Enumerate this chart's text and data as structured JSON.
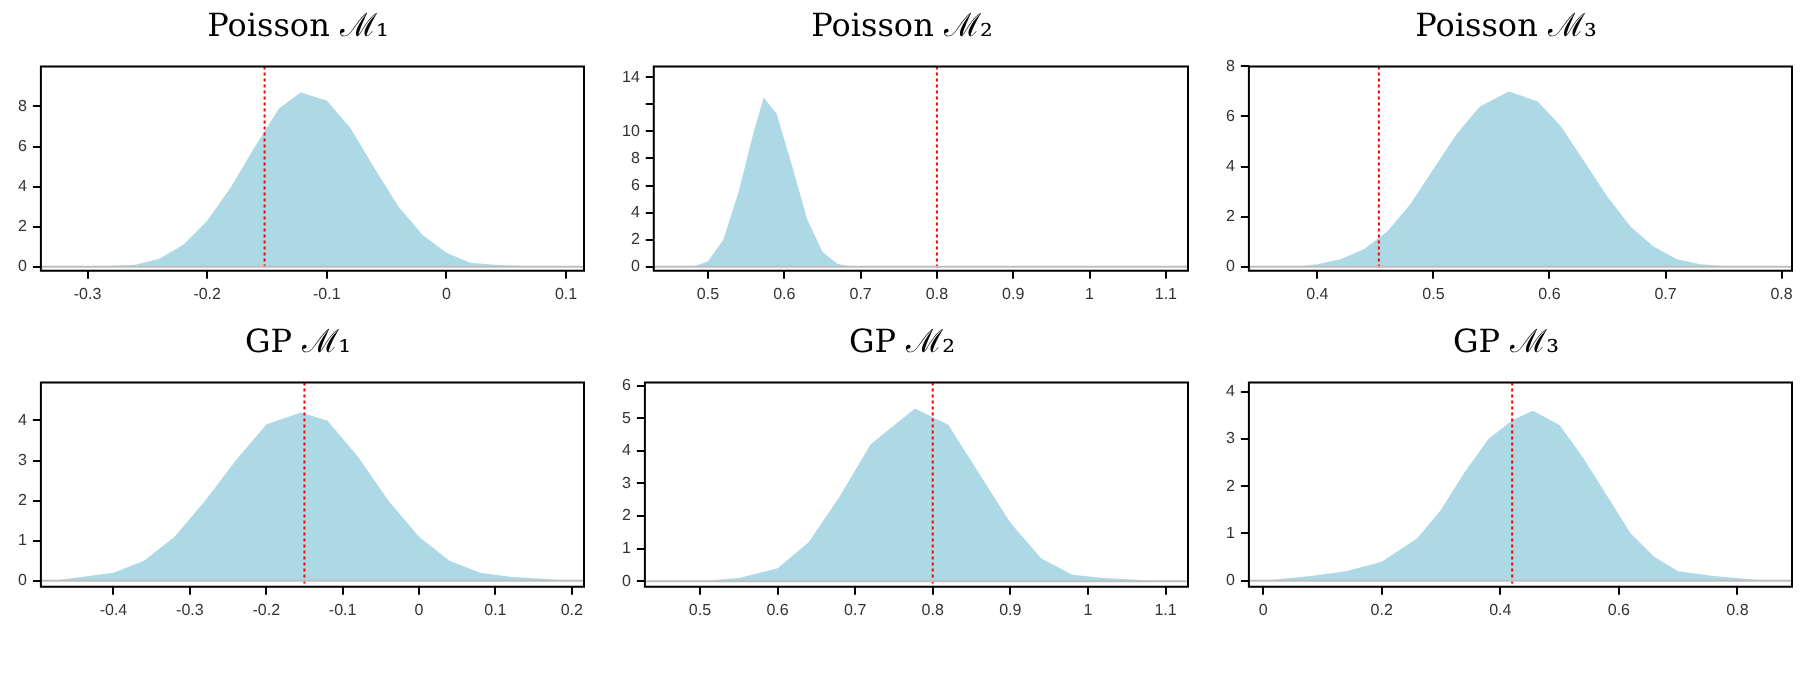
{
  "chart_data": [
    {
      "type": "area",
      "title": "Poisson ℳ₁",
      "color": "#add8e6",
      "x": [
        -0.3,
        -0.26,
        -0.24,
        -0.22,
        -0.2,
        -0.18,
        -0.16,
        -0.14,
        -0.122,
        -0.1,
        -0.08,
        -0.06,
        -0.04,
        -0.02,
        0.0,
        0.02,
        0.04,
        0.08
      ],
      "values": [
        0,
        0.1,
        0.4,
        1.1,
        2.3,
        4.0,
        6.0,
        7.9,
        8.7,
        8.3,
        6.9,
        4.9,
        3.0,
        1.6,
        0.7,
        0.2,
        0.1,
        0
      ],
      "xlim": [
        -0.339,
        0.115
      ],
      "ylim": [
        -0.2,
        10
      ],
      "xticks": [
        -0.3,
        -0.2,
        -0.1,
        0.0,
        0.1
      ],
      "yticks": [
        0,
        2,
        4,
        6,
        8
      ],
      "ref_lines": [
        {
          "axis": "x",
          "value": -0.152,
          "color": "#ff0000",
          "line_style": "dotted"
        },
        {
          "axis": "y",
          "value": 0,
          "color": "#bebebe",
          "line_style": "solid"
        }
      ]
    },
    {
      "type": "area",
      "title": "Poisson ℳ₂",
      "color": "#add8e6",
      "x": [
        0.48,
        0.5,
        0.52,
        0.54,
        0.56,
        0.573,
        0.59,
        0.61,
        0.63,
        0.65,
        0.67,
        0.69
      ],
      "values": [
        0,
        0.4,
        2.0,
        5.5,
        10.0,
        12.5,
        11.3,
        7.5,
        3.5,
        1.1,
        0.2,
        0
      ],
      "xlim": [
        0.429,
        1.129
      ],
      "ylim": [
        -0.3,
        14.8
      ],
      "xticks": [
        0.5,
        0.6,
        0.7,
        0.8,
        0.9,
        1.0,
        1.1
      ],
      "yticks": [
        0,
        2,
        4,
        6,
        8,
        10,
        {
          "value": 12,
          "label": null
        },
        14
      ],
      "ref_lines": [
        {
          "axis": "x",
          "value": 0.8,
          "color": "#ff0000",
          "line_style": "dotted"
        },
        {
          "axis": "y",
          "value": 0,
          "color": "#bebebe",
          "line_style": "solid"
        }
      ]
    },
    {
      "type": "area",
      "title": "Poisson ℳ₃",
      "color": "#add8e6",
      "x": [
        0.38,
        0.4,
        0.42,
        0.44,
        0.46,
        0.48,
        0.5,
        0.52,
        0.54,
        0.565,
        0.59,
        0.61,
        0.63,
        0.65,
        0.67,
        0.69,
        0.71,
        0.73,
        0.76
      ],
      "values": [
        0,
        0.1,
        0.3,
        0.7,
        1.4,
        2.5,
        3.9,
        5.3,
        6.4,
        7.0,
        6.6,
        5.6,
        4.2,
        2.8,
        1.6,
        0.8,
        0.3,
        0.1,
        0
      ],
      "xlim": [
        0.341,
        0.809
      ],
      "ylim": [
        -0.16,
        8
      ],
      "xticks": [
        0.4,
        0.5,
        0.6,
        0.7,
        0.8
      ],
      "yticks": [
        0,
        2,
        4,
        6,
        8
      ],
      "ref_lines": [
        {
          "axis": "x",
          "value": 0.453,
          "color": "#ff0000",
          "line_style": "dotted"
        },
        {
          "axis": "y",
          "value": 0,
          "color": "#bebebe",
          "line_style": "solid"
        }
      ]
    },
    {
      "type": "area",
      "title": "GP ℳ₁",
      "color": "#add8e6",
      "x": [
        -0.48,
        -0.44,
        -0.4,
        -0.36,
        -0.32,
        -0.28,
        -0.24,
        -0.2,
        -0.155,
        -0.12,
        -0.08,
        -0.04,
        0.0,
        0.04,
        0.08,
        0.12,
        0.2
      ],
      "values": [
        0,
        0.1,
        0.2,
        0.5,
        1.1,
        2.0,
        3.0,
        3.9,
        4.2,
        4.0,
        3.1,
        2.0,
        1.1,
        0.5,
        0.2,
        0.1,
        0
      ],
      "xlim": [
        -0.495,
        0.216
      ],
      "ylim": [
        -0.15,
        4.95
      ],
      "xticks": [
        -0.4,
        -0.3,
        -0.2,
        -0.1,
        0.0,
        0.1,
        0.2
      ],
      "yticks": [
        0,
        1,
        2,
        3,
        4
      ],
      "ref_lines": [
        {
          "axis": "x",
          "value": -0.15,
          "color": "#ff0000",
          "line_style": "dotted"
        },
        {
          "axis": "y",
          "value": 0,
          "color": "#bebebe",
          "line_style": "solid"
        }
      ]
    },
    {
      "type": "area",
      "title": "GP ℳ₂",
      "color": "#add8e6",
      "x": [
        0.5,
        0.55,
        0.6,
        0.64,
        0.68,
        0.72,
        0.777,
        0.82,
        0.86,
        0.9,
        0.94,
        0.98,
        1.02,
        1.1
      ],
      "values": [
        0,
        0.1,
        0.4,
        1.2,
        2.6,
        4.2,
        5.3,
        4.8,
        3.3,
        1.8,
        0.7,
        0.2,
        0.1,
        0
      ],
      "xlim": [
        0.429,
        1.129
      ],
      "ylim": [
        -0.17,
        6.1
      ],
      "xticks": [
        0.5,
        0.6,
        0.7,
        0.8,
        0.9,
        1.0,
        1.1
      ],
      "yticks": [
        0,
        1,
        2,
        3,
        4,
        5,
        6
      ],
      "ref_lines": [
        {
          "axis": "x",
          "value": 0.8,
          "color": "#ff0000",
          "line_style": "dotted"
        },
        {
          "axis": "y",
          "value": 0,
          "color": "#bebebe",
          "line_style": "solid"
        }
      ]
    },
    {
      "type": "area",
      "title": "GP ℳ₃",
      "color": "#add8e6",
      "x": [
        0.0,
        0.08,
        0.14,
        0.2,
        0.26,
        0.3,
        0.34,
        0.38,
        0.42,
        0.455,
        0.5,
        0.54,
        0.58,
        0.62,
        0.66,
        0.7,
        0.76,
        0.85
      ],
      "values": [
        0,
        0.1,
        0.2,
        0.4,
        0.9,
        1.5,
        2.3,
        3.0,
        3.4,
        3.6,
        3.3,
        2.6,
        1.8,
        1.0,
        0.5,
        0.2,
        0.1,
        0
      ],
      "xlim": [
        -0.024,
        0.892
      ],
      "ylim": [
        -0.13,
        4.2
      ],
      "xticks": [
        0.0,
        0.2,
        0.4,
        0.6,
        0.8
      ],
      "yticks": [
        0,
        1,
        2,
        3,
        4
      ],
      "ref_lines": [
        {
          "axis": "x",
          "value": 0.42,
          "color": "#ff0000",
          "line_style": "dotted"
        },
        {
          "axis": "y",
          "value": 0,
          "color": "#bebebe",
          "line_style": "solid"
        }
      ]
    }
  ]
}
